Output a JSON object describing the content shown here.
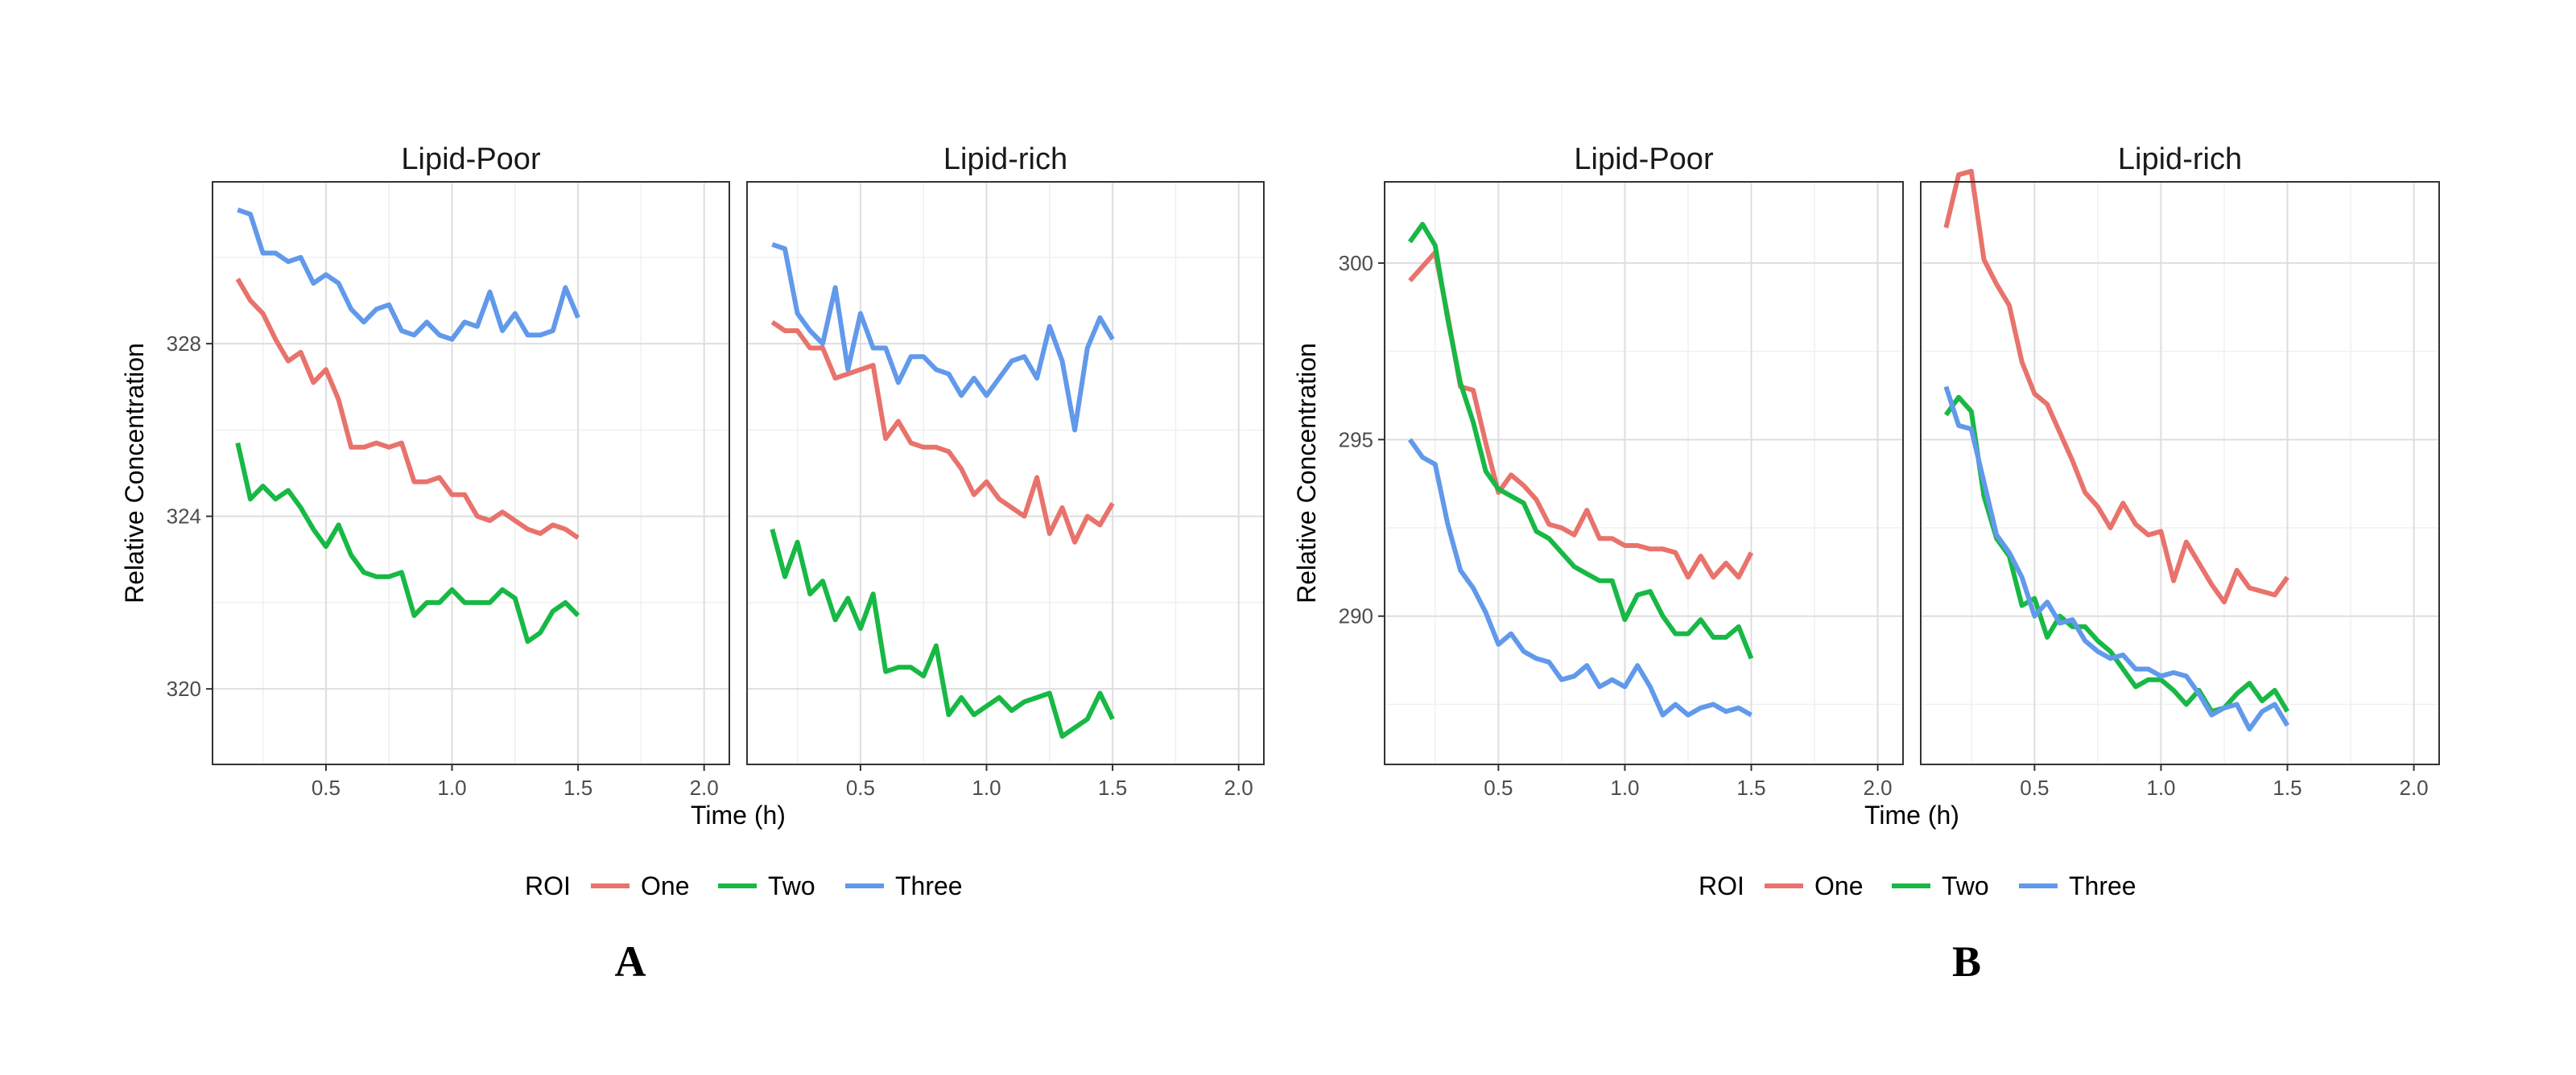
{
  "chart_data": [
    {
      "type": "line",
      "panel_label": "A",
      "xlabel": "Time (h)",
      "ylabel": "Relative Concentration",
      "facets": [
        "Lipid-Poor",
        "Lipid-rich"
      ],
      "xlim": [
        0.05,
        2.1
      ],
      "ylim": [
        318.25,
        331.75
      ],
      "x_ticks": [
        0.5,
        1.0,
        1.5,
        2.0
      ],
      "x_tick_labels": [
        "0.5",
        "1.0",
        "1.5",
        "2.0"
      ],
      "y_ticks": [
        320,
        324,
        328
      ],
      "y_tick_labels": [
        "320",
        "324",
        "328"
      ],
      "grid": true,
      "legend": {
        "title": "ROI",
        "position": "bottom",
        "items": [
          "One",
          "Two",
          "Three"
        ]
      },
      "x": [
        0.15,
        0.2,
        0.25,
        0.3,
        0.35,
        0.4,
        0.45,
        0.5,
        0.55,
        0.6,
        0.65,
        0.7,
        0.75,
        0.8,
        0.85,
        0.9,
        0.95,
        1.0,
        1.05,
        1.1,
        1.15,
        1.2,
        1.25,
        1.3,
        1.35,
        1.4,
        1.45,
        1.5,
        1.55,
        1.6,
        1.65,
        1.7,
        1.75,
        1.8,
        1.85,
        1.9,
        1.95,
        2.0,
        2.05
      ],
      "panels": [
        {
          "facet": "Lipid-Poor",
          "series": [
            {
              "name": "One",
              "values": [
                329.5,
                329.0,
                328.7,
                328.1,
                327.6,
                327.8,
                327.1,
                327.4,
                326.7,
                325.6,
                325.6,
                325.7,
                325.6,
                325.7,
                324.8,
                324.8,
                324.9,
                324.5,
                324.5,
                324.0,
                323.9,
                324.1,
                323.9,
                323.7,
                323.6,
                323.8,
                323.7,
                323.5,
                null,
                null,
                null,
                null,
                null,
                null,
                null,
                null,
                null,
                null,
                null
              ]
            },
            {
              "name": "Two",
              "values": [
                325.7,
                324.4,
                324.7,
                324.4,
                324.6,
                324.2,
                323.7,
                323.3,
                323.8,
                323.1,
                322.7,
                322.6,
                322.6,
                322.7,
                321.7,
                322.0,
                322.0,
                322.3,
                322.0,
                322.0,
                322.0,
                322.3,
                322.1,
                321.1,
                321.3,
                321.8,
                322.0,
                321.7,
                null,
                null,
                null,
                null,
                null,
                null,
                null,
                null,
                null,
                null,
                null
              ]
            },
            {
              "name": "Three",
              "values": [
                331.1,
                331.0,
                330.1,
                330.1,
                329.9,
                330.0,
                329.4,
                329.6,
                329.4,
                328.8,
                328.5,
                328.8,
                328.9,
                328.3,
                328.2,
                328.5,
                328.2,
                328.1,
                328.5,
                328.4,
                329.2,
                328.3,
                328.7,
                328.2,
                328.2,
                328.3,
                329.3,
                328.6,
                null,
                null,
                null,
                null,
                null,
                null,
                null,
                null,
                null,
                null,
                null
              ]
            }
          ]
        },
        {
          "facet": "Lipid-rich",
          "series": [
            {
              "name": "One",
              "values": [
                328.5,
                328.3,
                328.3,
                327.9,
                327.9,
                327.2,
                327.3,
                327.4,
                327.5,
                325.8,
                326.2,
                325.7,
                325.6,
                325.6,
                325.5,
                325.1,
                324.5,
                324.8,
                324.4,
                324.2,
                324.0,
                324.9,
                323.6,
                324.2,
                323.4,
                324.0,
                323.8,
                324.3,
                null,
                null,
                null,
                null,
                null,
                null,
                null,
                null,
                null,
                null,
                null
              ]
            },
            {
              "name": "Two",
              "values": [
                323.7,
                322.6,
                323.4,
                322.2,
                322.5,
                321.6,
                322.1,
                321.4,
                322.2,
                320.4,
                320.5,
                320.5,
                320.3,
                321.0,
                319.4,
                319.8,
                319.4,
                319.6,
                319.8,
                319.5,
                319.7,
                319.8,
                319.9,
                318.9,
                319.1,
                319.3,
                319.9,
                319.3,
                null,
                null,
                null,
                null,
                null,
                null,
                null,
                null,
                null,
                null,
                null
              ]
            },
            {
              "name": "Three",
              "values": [
                330.3,
                330.2,
                328.7,
                328.3,
                328.0,
                329.3,
                327.4,
                328.7,
                327.9,
                327.9,
                327.1,
                327.7,
                327.7,
                327.4,
                327.3,
                326.8,
                327.2,
                326.8,
                327.2,
                327.6,
                327.7,
                327.2,
                328.4,
                327.6,
                326.0,
                327.9,
                328.6,
                328.1,
                null,
                null,
                null,
                null,
                null,
                null,
                null,
                null,
                null,
                null,
                null
              ]
            }
          ]
        }
      ]
    },
    {
      "type": "line",
      "panel_label": "B",
      "xlabel": "Time (h)",
      "ylabel": "Relative Concentration",
      "facets": [
        "Lipid-Poor",
        "Lipid-rich"
      ],
      "xlim": [
        0.05,
        2.1
      ],
      "ylim": [
        285.8,
        302.3
      ],
      "x_ticks": [
        0.5,
        1.0,
        1.5,
        2.0
      ],
      "x_tick_labels": [
        "0.5",
        "1.0",
        "1.5",
        "2.0"
      ],
      "y_ticks": [
        290,
        295,
        300
      ],
      "y_tick_labels": [
        "290",
        "295",
        "300"
      ],
      "grid": true,
      "legend": {
        "title": "ROI",
        "position": "bottom",
        "items": [
          "One",
          "Two",
          "Three"
        ]
      },
      "x": [
        0.15,
        0.2,
        0.25,
        0.3,
        0.35,
        0.4,
        0.45,
        0.5,
        0.55,
        0.6,
        0.65,
        0.7,
        0.75,
        0.8,
        0.85,
        0.9,
        0.95,
        1.0,
        1.05,
        1.1,
        1.15,
        1.2,
        1.25,
        1.3,
        1.35,
        1.4,
        1.45,
        1.5,
        1.55,
        1.6,
        1.65,
        1.7,
        1.75,
        1.8,
        1.85,
        1.9,
        1.95,
        2.0,
        2.05
      ],
      "panels": [
        {
          "facet": "Lipid-Poor",
          "series": [
            {
              "name": "One",
              "values": [
                299.5,
                299.9,
                300.3,
                298.5,
                296.5,
                296.4,
                294.9,
                293.5,
                294.0,
                293.7,
                293.3,
                292.6,
                292.5,
                292.3,
                293.0,
                292.2,
                292.2,
                292.0,
                292.0,
                291.9,
                291.9,
                291.8,
                291.1,
                291.7,
                291.1,
                291.5,
                291.1,
                291.8,
                null,
                null,
                null,
                null,
                null,
                null,
                null,
                null,
                null,
                null,
                null
              ]
            },
            {
              "name": "Two",
              "values": [
                300.6,
                301.1,
                300.5,
                298.4,
                296.6,
                295.5,
                294.1,
                293.6,
                293.4,
                293.2,
                292.4,
                292.2,
                291.8,
                291.4,
                291.2,
                291.0,
                291.0,
                289.9,
                290.6,
                290.7,
                290.0,
                289.5,
                289.5,
                289.9,
                289.4,
                289.4,
                289.7,
                288.8,
                null,
                null,
                null,
                null,
                null,
                null,
                null,
                null,
                null,
                null,
                null
              ]
            },
            {
              "name": "Three",
              "values": [
                295.0,
                294.5,
                294.3,
                292.6,
                291.3,
                290.8,
                290.1,
                289.2,
                289.5,
                289.0,
                288.8,
                288.7,
                288.2,
                288.3,
                288.6,
                288.0,
                288.2,
                288.0,
                288.6,
                288.0,
                287.2,
                287.5,
                287.2,
                287.4,
                287.5,
                287.3,
                287.4,
                287.2,
                null,
                null,
                null,
                null,
                null,
                null,
                null,
                null,
                null,
                null,
                null
              ]
            }
          ]
        },
        {
          "facet": "Lipid-rich",
          "series": [
            {
              "name": "One",
              "values": [
                301.0,
                302.5,
                302.6,
                300.1,
                299.4,
                298.8,
                297.2,
                296.3,
                296.0,
                295.2,
                294.4,
                293.5,
                293.1,
                292.5,
                293.2,
                292.6,
                292.3,
                292.4,
                291.0,
                292.1,
                291.5,
                290.9,
                290.4,
                291.3,
                290.8,
                290.7,
                290.6,
                291.1,
                null,
                null,
                null,
                null,
                null,
                null,
                null,
                null,
                null,
                null,
                null
              ]
            },
            {
              "name": "Two",
              "values": [
                295.7,
                296.2,
                295.8,
                293.4,
                292.2,
                291.7,
                290.3,
                290.5,
                289.4,
                290.0,
                289.7,
                289.7,
                289.3,
                289.0,
                288.5,
                288.0,
                288.2,
                288.2,
                287.9,
                287.5,
                287.9,
                287.3,
                287.4,
                287.8,
                288.1,
                287.6,
                287.9,
                287.3,
                null,
                null,
                null,
                null,
                null,
                null,
                null,
                null,
                null,
                null,
                null
              ]
            },
            {
              "name": "Three",
              "values": [
                296.5,
                295.4,
                295.3,
                293.8,
                292.3,
                291.8,
                291.1,
                290.0,
                290.4,
                289.8,
                289.9,
                289.3,
                289.0,
                288.8,
                288.9,
                288.5,
                288.5,
                288.3,
                288.4,
                288.3,
                287.8,
                287.2,
                287.4,
                287.5,
                286.8,
                287.3,
                287.5,
                286.9,
                null,
                null,
                null,
                null,
                null,
                null,
                null,
                null,
                null,
                null,
                null
              ]
            }
          ]
        }
      ]
    }
  ],
  "colors": {
    "One": "#E8736C",
    "Two": "#18B845",
    "Three": "#6199EB"
  }
}
